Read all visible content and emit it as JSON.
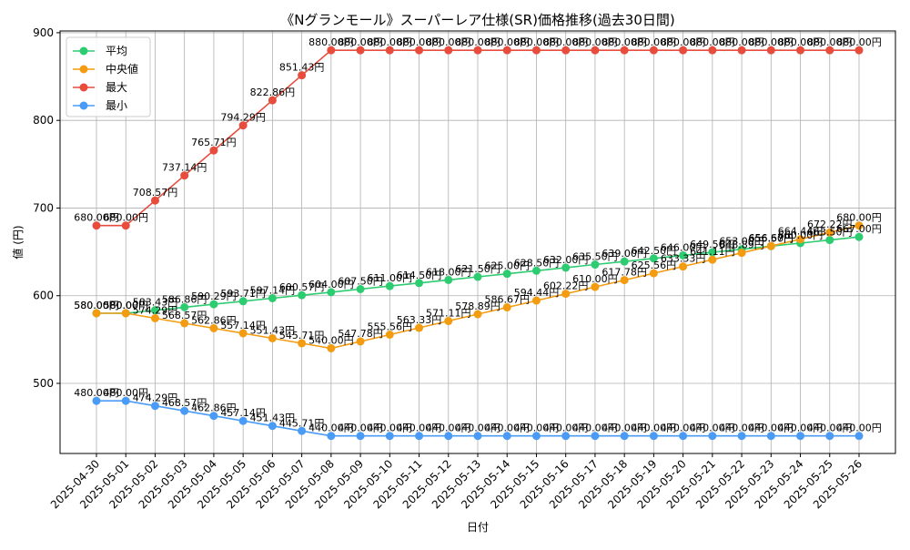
{
  "chart_data": {
    "type": "line",
    "title": "《Nグランモール》スーパーレア仕様(SR)価格推移(過去30日間)",
    "xlabel": "日付",
    "ylabel": "値 (円)",
    "ylim": [
      420,
      902
    ],
    "yticks": [
      500,
      600,
      700,
      800,
      900
    ],
    "grid": true,
    "legend_position": "top-left",
    "value_suffix": "円",
    "categories": [
      "2025-04-30",
      "2025-05-01",
      "2025-05-02",
      "2025-05-03",
      "2025-05-04",
      "2025-05-05",
      "2025-05-06",
      "2025-05-07",
      "2025-05-08",
      "2025-05-09",
      "2025-05-10",
      "2025-05-11",
      "2025-05-12",
      "2025-05-13",
      "2025-05-14",
      "2025-05-15",
      "2025-05-16",
      "2025-05-17",
      "2025-05-18",
      "2025-05-19",
      "2025-05-20",
      "2025-05-21",
      "2025-05-22",
      "2025-05-23",
      "2025-05-24",
      "2025-05-25",
      "2025-05-26"
    ],
    "series": [
      {
        "name": "平均",
        "color": "#2ecc71",
        "values": [
          580.0,
          580.0,
          583.43,
          586.86,
          590.29,
          593.71,
          597.14,
          600.57,
          604.0,
          607.5,
          611.0,
          614.5,
          618.0,
          621.5,
          625.0,
          628.5,
          632.0,
          635.5,
          639.0,
          642.5,
          646.0,
          649.5,
          653.0,
          656.5,
          660.0,
          663.5,
          667.0
        ]
      },
      {
        "name": "中央値",
        "color": "#f39c12",
        "values": [
          580.0,
          580.0,
          574.29,
          568.57,
          562.86,
          557.14,
          551.43,
          545.71,
          540.0,
          547.78,
          555.56,
          563.33,
          571.11,
          578.89,
          586.67,
          594.44,
          602.22,
          610.0,
          617.78,
          625.56,
          633.33,
          641.11,
          648.89,
          656.67,
          664.44,
          672.22,
          680.0
        ]
      },
      {
        "name": "最大",
        "color": "#e74c3c",
        "values": [
          680.0,
          680.0,
          708.57,
          737.14,
          765.71,
          794.29,
          822.86,
          851.43,
          880.0,
          880.0,
          880.0,
          880.0,
          880.0,
          880.0,
          880.0,
          880.0,
          880.0,
          880.0,
          880.0,
          880.0,
          880.0,
          880.0,
          880.0,
          880.0,
          880.0,
          880.0,
          880.0
        ]
      },
      {
        "name": "最小",
        "color": "#4a9bf5",
        "values": [
          480.0,
          480.0,
          474.29,
          468.57,
          462.86,
          457.14,
          451.43,
          445.71,
          440.0,
          440.0,
          440.0,
          440.0,
          440.0,
          440.0,
          440.0,
          440.0,
          440.0,
          440.0,
          440.0,
          440.0,
          440.0,
          440.0,
          440.0,
          440.0,
          440.0,
          440.0,
          440.0
        ]
      }
    ]
  }
}
